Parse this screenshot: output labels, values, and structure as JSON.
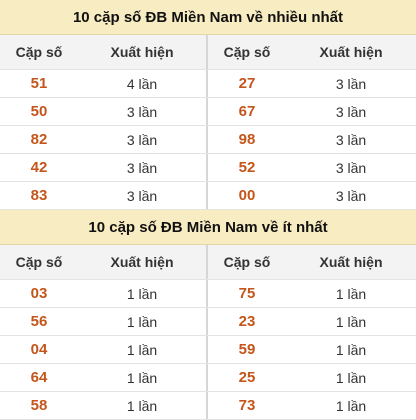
{
  "sections": [
    {
      "title": "10 cặp số ĐB Miền Nam về nhiều nhất",
      "headers": [
        "Cặp số",
        "Xuất hiện",
        "Cặp số",
        "Xuất hiện"
      ],
      "rows": [
        [
          "51",
          "4 lần",
          "27",
          "3 lần"
        ],
        [
          "50",
          "3 lần",
          "67",
          "3 lần"
        ],
        [
          "82",
          "3 lần",
          "98",
          "3 lần"
        ],
        [
          "42",
          "3 lần",
          "52",
          "3 lần"
        ],
        [
          "83",
          "3 lần",
          "00",
          "3 lần"
        ]
      ]
    },
    {
      "title": "10 cặp số ĐB Miền Nam về ít nhất",
      "headers": [
        "Cặp số",
        "Xuất hiện",
        "Cặp số",
        "Xuất hiện"
      ],
      "rows": [
        [
          "03",
          "1 lần",
          "75",
          "1 lần"
        ],
        [
          "56",
          "1 lần",
          "23",
          "1 lần"
        ],
        [
          "04",
          "1 lần",
          "59",
          "1 lần"
        ],
        [
          "64",
          "1 lần",
          "25",
          "1 lần"
        ],
        [
          "58",
          "1 lần",
          "73",
          "1 lần"
        ]
      ]
    }
  ]
}
